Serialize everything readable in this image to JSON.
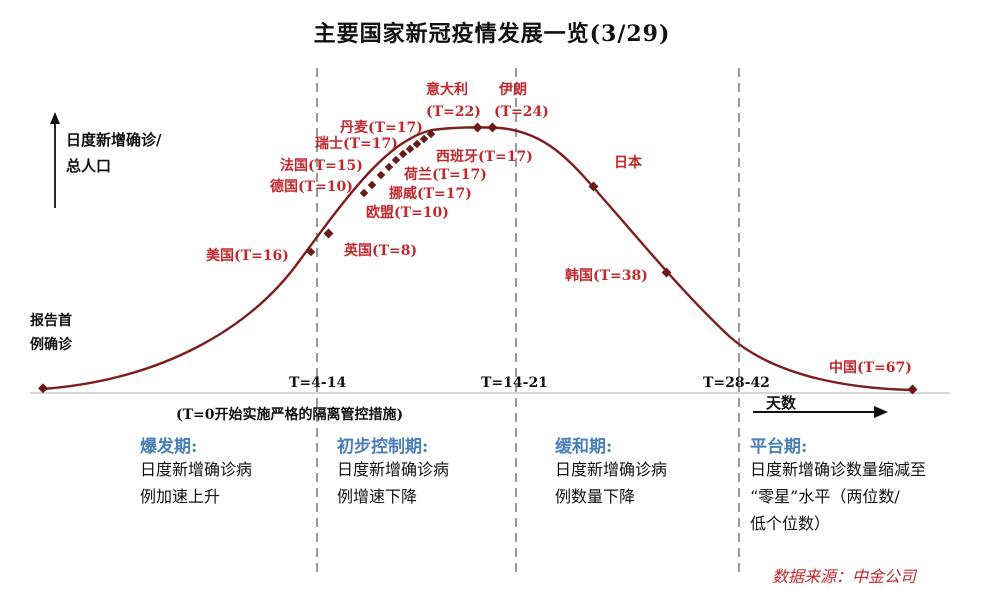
{
  "title": "主要国家新冠疫情发展一览(3/29)",
  "yaxis_label_line1": "日度新增确诊/",
  "yaxis_label_line2": "总人口",
  "start_label_line1": "报告首",
  "start_label_line2": "例确诊",
  "xaxis_label": "天数",
  "x_ticks": [
    "T=4-14",
    "T=14-21",
    "T=28-42"
  ],
  "note": "(T=0开始实施严格的隔离管控措施)",
  "country_labels": {
    "usa": "美国(T=16)",
    "uk": "英国(T=8)",
    "germany": "德国(T=10)",
    "france": "法国(T=15)",
    "switzerland": "瑞士(T=17)",
    "denmark": "丹麦(T=17)",
    "italy_1": "意大利",
    "italy_2": "(T=22)",
    "iran_1": "伊朗",
    "iran_2": "(T=24)",
    "spain": "西班牙(T=17)",
    "netherlands": "荷兰(T=17)",
    "norway": "挪威(T=17)",
    "eu": "欧盟(T=10)",
    "japan": "日本",
    "korea": "韩国(T=38)",
    "china": "中国(T=67)"
  },
  "phases": [
    {
      "title": "爆发期:",
      "line1": "日度新增确诊病",
      "line2": "例加速上升",
      "line3": ""
    },
    {
      "title": "初步控制期:",
      "line1": "日度新增确诊病",
      "line2": "例增速下降",
      "line3": ""
    },
    {
      "title": "缓和期:",
      "line1": "日度新增确诊病",
      "line2": "例数量下降",
      "line3": ""
    },
    {
      "title": "平台期:",
      "line1": "日度新增确诊数量缩减至",
      "line2": "“零星”水平（两位数/",
      "line3": "低个位数）"
    }
  ],
  "source": "数据来源：中金公司",
  "colors": {
    "curve": "#7b1f1f",
    "marker": "#6b1a1a",
    "red_text": "#c0282d",
    "phase_title": "#4a7fb8",
    "divider": "#9a9a9a"
  }
}
